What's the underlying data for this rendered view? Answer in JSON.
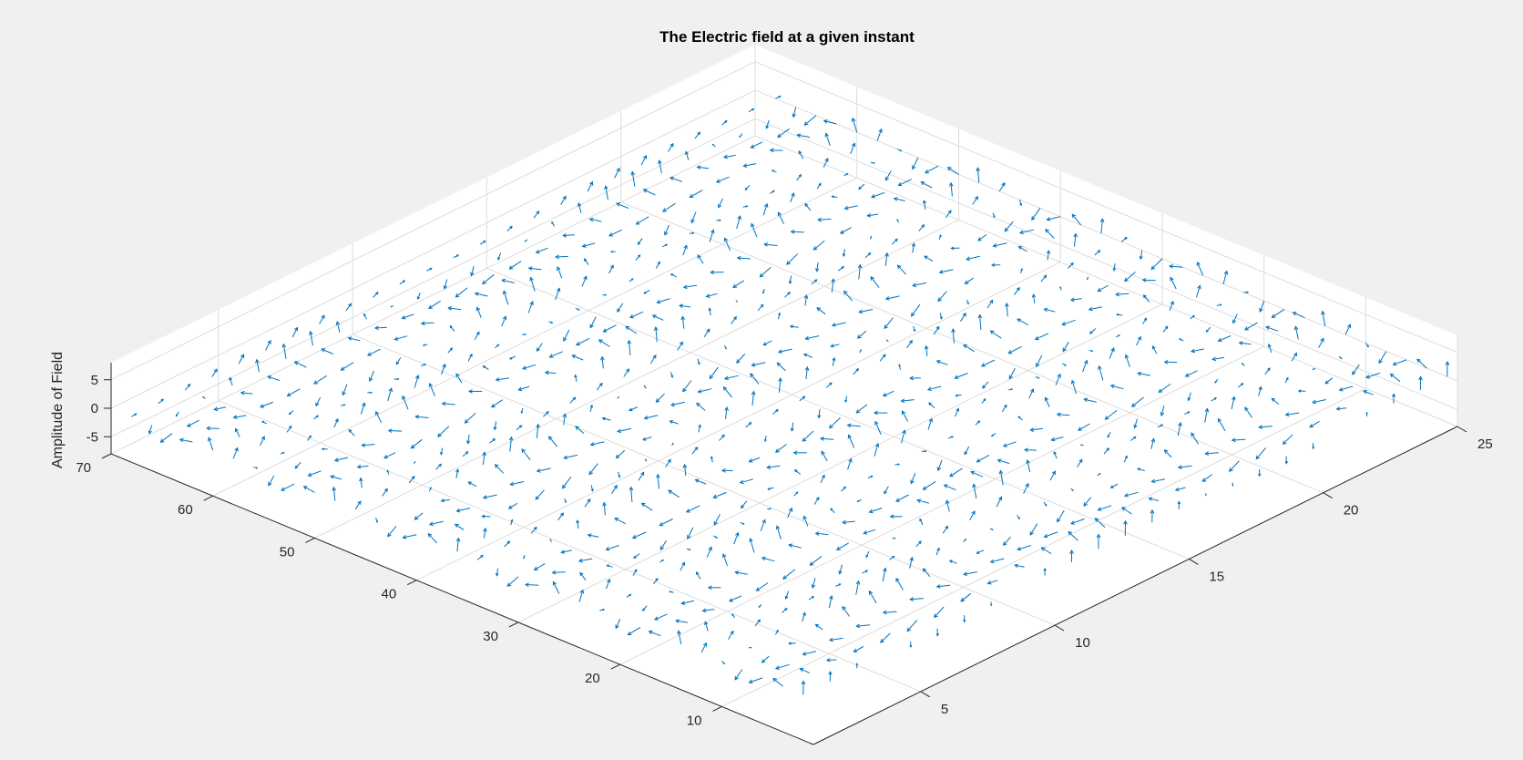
{
  "chart_data": {
    "type": "quiver3",
    "title": "The Electric field at a given instant",
    "xlabel": "",
    "ylabel": "",
    "zlabel": "Amplitude of Field",
    "xlim": [
      1,
      25
    ],
    "ylim": [
      1,
      70
    ],
    "zlim": [
      -8,
      8
    ],
    "x_ticks": [
      "5",
      "10",
      "15",
      "20",
      "25"
    ],
    "x_tick_values": [
      5,
      10,
      15,
      20,
      25
    ],
    "y_ticks": [
      "10",
      "20",
      "30",
      "40",
      "50",
      "60",
      "70"
    ],
    "y_tick_values": [
      10,
      20,
      30,
      40,
      50,
      60,
      70
    ],
    "z_ticks": [
      "-5",
      "0",
      "5"
    ],
    "z_tick_values": [
      -5,
      0,
      5
    ],
    "grid": true,
    "series": [
      {
        "color": "#0072bd",
        "field": "E = sin(y) * cos(x) direction vectors on grid",
        "x_grid": [
          1,
          2,
          3,
          4,
          5,
          6,
          7,
          8,
          9,
          10,
          11,
          12,
          13,
          14,
          15,
          16,
          17,
          18,
          19,
          20,
          21,
          22,
          23,
          24,
          25
        ],
        "y_grid_step": 2
      }
    ]
  },
  "colors": {
    "background": "#f0f0f0",
    "axes_background": "#ffffff",
    "grid": "#dcdcdc",
    "axis": "#262626",
    "arrows": "#0072bd"
  }
}
